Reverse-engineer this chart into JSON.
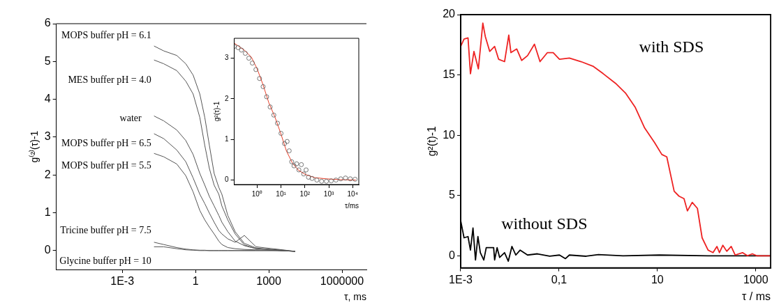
{
  "chart_data": [
    {
      "type": "line",
      "xlabel": "τ, ms",
      "ylabel": "g⁽²⁾(τ)-1",
      "log": "x",
      "xlim": [
        2e-06,
        10000000
      ],
      "xticks": [
        {
          "value": 0.001,
          "label": "1E-3"
        },
        1,
        1000,
        1000000
      ],
      "ylim": [
        -0.5,
        6
      ],
      "yticks": [
        0,
        1,
        2,
        3,
        4,
        5,
        6
      ],
      "x": [
        0.02,
        0.05,
        0.17,
        0.4,
        0.8,
        1.5,
        2.4,
        3.7,
        5.8,
        9,
        12,
        21,
        42,
        100,
        300,
        2700,
        12000
      ],
      "series": [
        {
          "name": "MOPS buffer pH = 6.1",
          "color": "#555555",
          "values": [
            5.41,
            5.28,
            5.16,
            4.94,
            4.64,
            4.14,
            3.52,
            2.78,
            2.04,
            1.67,
            1.49,
            0.93,
            0.5,
            0.19,
            0.07,
            0.0,
            -0.02
          ]
        },
        {
          "name": "MES buffer pH = 4.0",
          "color": "#555555",
          "values": [
            5.04,
            4.94,
            4.76,
            4.48,
            4.14,
            3.52,
            2.78,
            2.17,
            1.73,
            1.49,
            1.18,
            0.81,
            0.44,
            0.15,
            0.05,
            0.02,
            -0.02
          ]
        },
        {
          "name": "water",
          "color": "#555555",
          "values": [
            3.56,
            3.43,
            3.19,
            2.91,
            2.54,
            2.04,
            1.73,
            1.43,
            1.18,
            0.93,
            0.75,
            0.5,
            0.25,
            0.13,
            0.05,
            0.01,
            -0.02
          ]
        },
        {
          "name": "MOPS buffer pH = 6.5",
          "color": "#555555",
          "values": [
            3.09,
            2.96,
            2.66,
            2.35,
            1.92,
            1.49,
            1.24,
            0.99,
            0.75,
            0.53,
            0.44,
            0.31,
            0.22,
            0.4,
            0.1,
            0.03,
            -0.02
          ]
        },
        {
          "name": "MOPS buffer pH = 5.5",
          "color": "#555555",
          "values": [
            2.57,
            2.48,
            2.29,
            1.98,
            1.55,
            1.06,
            0.81,
            0.62,
            0.44,
            0.25,
            0.16,
            0.08,
            0.05,
            0.03,
            0.02,
            0,
            -0.02
          ]
        },
        {
          "name": "Tricine buffer pH = 7.5",
          "color": "#555555",
          "values": [
            0.22,
            0.16,
            0.08,
            0.04,
            0.02,
            0.01,
            0.01,
            0,
            0,
            0,
            0,
            0,
            0,
            0,
            0,
            0,
            -0.02
          ]
        },
        {
          "name": "Glycine buffer pH = 10",
          "color": "#555555",
          "values": [
            0.1,
            0.1,
            0.05,
            0.02,
            0.01,
            0,
            0,
            0,
            0,
            0,
            0,
            0,
            0,
            0,
            0,
            0,
            -0.02
          ]
        }
      ]
    },
    {
      "type": "scatter",
      "xlabel": "τ/ms",
      "ylabel": "g²(τ)-1",
      "log": "x",
      "xlim": [
        0.11,
        18000
      ],
      "xticks": [
        {
          "value": 1,
          "label": "10⁰"
        },
        {
          "value": 10,
          "label": "10¹"
        },
        {
          "value": 100,
          "label": "10²"
        },
        {
          "value": 1000,
          "label": "10³"
        },
        {
          "value": 10000,
          "label": "10⁴"
        }
      ],
      "ylim": [
        -0.11,
        3.49
      ],
      "yticks": [
        0,
        1,
        2,
        3
      ],
      "series": [
        {
          "marker": "circle",
          "color": "#555555",
          "x": [
            0.11,
            0.16,
            0.22,
            0.32,
            0.45,
            0.63,
            0.89,
            1.26,
            1.78,
            2.5,
            3.5,
            5,
            7.1,
            10,
            14,
            18,
            22,
            28,
            35,
            45,
            56,
            71,
            89,
            112,
            141,
            200,
            316,
            500,
            794,
            1260,
            2000,
            3160,
            5000,
            7940,
            12600
          ],
          "values": [
            3.29,
            3.26,
            3.2,
            3.12,
            3.0,
            2.88,
            2.72,
            2.5,
            2.3,
            2.05,
            1.8,
            1.6,
            1.4,
            1.15,
            0.9,
            0.95,
            0.72,
            0.45,
            0.35,
            0.4,
            0.25,
            0.38,
            0.15,
            0.25,
            0.07,
            0.04,
            0.0,
            -0.03,
            -0.03,
            -0.02,
            0.0,
            0.03,
            0.05,
            0.03,
            0.02
          ]
        },
        {
          "type": "line",
          "color": "#e8402a",
          "x": [
            0.11,
            0.29,
            0.57,
            1,
            1.76,
            3.1,
            5.5,
            9.6,
            17,
            30,
            52,
            102,
            257,
            794,
            3090,
            13500
          ],
          "values": [
            3.37,
            3.2,
            3.03,
            2.74,
            2.35,
            1.9,
            1.56,
            1.16,
            0.71,
            0.42,
            0.25,
            0.14,
            0.06,
            0.03,
            0.01,
            0
          ]
        }
      ]
    },
    {
      "type": "line",
      "xlabel": "τ / ms",
      "ylabel": "g²(t)-1",
      "log": "x",
      "xlim": [
        0.001,
        2000
      ],
      "xticks": [
        {
          "value": 0.001,
          "label": "1E-3"
        },
        {
          "value": 0.1,
          "label": "0,1"
        },
        10,
        1000
      ],
      "ylim": [
        -1,
        20
      ],
      "yticks": [
        0,
        5,
        10,
        15,
        20
      ],
      "series": [
        {
          "name": "with SDS",
          "color": "#ee2222",
          "x": [
            0.001,
            0.00117,
            0.00141,
            0.00158,
            0.00186,
            0.00229,
            0.00282,
            0.00316,
            0.00389,
            0.0049,
            0.0059,
            0.0078,
            0.0095,
            0.0105,
            0.0138,
            0.0174,
            0.0229,
            0.0316,
            0.041,
            0.058,
            0.076,
            0.102,
            0.162,
            0.28,
            0.5,
            0.79,
            1.41,
            2.24,
            3.55,
            5.5,
            8.7,
            12.3,
            15.5,
            21.9,
            27.5,
            34.7,
            40.7,
            51,
            65,
            81,
            107,
            135,
            162,
            182,
            214,
            257,
            316,
            380,
            537,
            676,
            851,
            1047,
            2000
          ],
          "values": [
            17.36,
            17.97,
            18.07,
            15.1,
            16.95,
            15.5,
            19.3,
            18.2,
            16.95,
            17.36,
            16.3,
            16.1,
            18.3,
            16.85,
            17.15,
            16.2,
            16.6,
            17.55,
            16.1,
            16.85,
            16.85,
            16.3,
            16.4,
            16.1,
            15.7,
            15.1,
            14.3,
            13.5,
            12.3,
            10.6,
            9.4,
            8.4,
            8.2,
            5.35,
            4.94,
            4.74,
            3.72,
            4.43,
            3.93,
            1.49,
            0.47,
            0.26,
            0.77,
            0.26,
            0.87,
            0.37,
            0.77,
            0.06,
            0.26,
            0,
            0.16,
            0,
            0
          ]
        },
        {
          "name": "without SDS",
          "color": "#000000",
          "x": [
            0.001,
            0.00117,
            0.00141,
            0.00158,
            0.00178,
            0.002,
            0.00224,
            0.00251,
            0.00295,
            0.00331,
            0.00468,
            0.0049,
            0.0055,
            0.0062,
            0.0078,
            0.0093,
            0.011,
            0.0132,
            0.0162,
            0.0229,
            0.0363,
            0.0646,
            0.102,
            0.135,
            0.162,
            0.355,
            0.63,
            2,
            11,
            107,
            2000
          ],
          "values": [
            2.91,
            1.49,
            1.59,
            0.47,
            2.3,
            -0.35,
            1.59,
            0.26,
            -0.35,
            0.67,
            0.67,
            -0.35,
            0.67,
            -0.14,
            0.26,
            -0.45,
            0.77,
            0.06,
            0.47,
            0.06,
            0.16,
            -0.04,
            0.06,
            -0.24,
            0.06,
            -0.04,
            0.1,
            0,
            0.06,
            0,
            0
          ]
        }
      ]
    }
  ]
}
